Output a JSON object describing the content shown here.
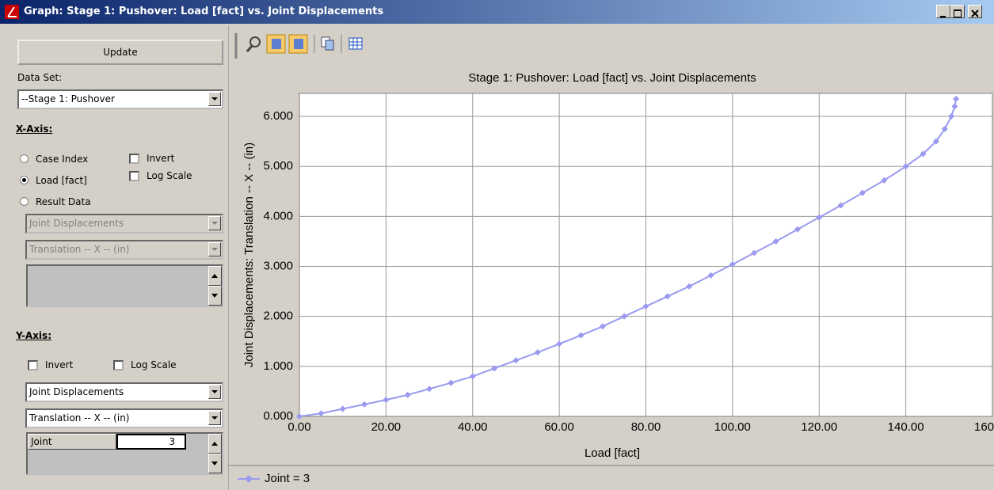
{
  "window": {
    "title": "Graph: Stage 1: Pushover: Load [fact] vs. Joint Displacements"
  },
  "panel": {
    "update": "Update",
    "data_set_label": "Data Set:",
    "data_set": "--Stage 1: Pushover",
    "x_axis": {
      "heading": "X-Axis:",
      "options": [
        "Case Index",
        "Load [fact]",
        "Result Data"
      ],
      "selected": 1,
      "invert": "Invert",
      "log_scale": "Log Scale",
      "result_type": "Joint Displacements",
      "component": "Translation -- X -- (in)"
    },
    "y_axis": {
      "heading": "Y-Axis:",
      "invert": "Invert",
      "log_scale": "Log Scale",
      "result_type": "Joint Displacements",
      "component": "Translation -- X -- (in)",
      "item_label": "Joint",
      "item_value": "3"
    }
  },
  "chart_data": {
    "type": "line",
    "title": "Stage 1: Pushover: Load [fact] vs. Joint Displacements",
    "x_label": "Load [fact]",
    "y_label": "Joint Displacements: Translation -- X -- (in)",
    "xlim": [
      0,
      160
    ],
    "ylim": [
      0,
      6.46
    ],
    "xticks": [
      {
        "value": 0,
        "label": "0.00"
      },
      {
        "value": 20,
        "label": "20.00"
      },
      {
        "value": 40,
        "label": "40.00"
      },
      {
        "value": 60,
        "label": "60.00"
      },
      {
        "value": 80,
        "label": "80.00"
      },
      {
        "value": 100,
        "label": "100.00"
      },
      {
        "value": 120,
        "label": "120.00"
      },
      {
        "value": 140,
        "label": "140.00"
      },
      {
        "value": 160,
        "label": "160.00"
      }
    ],
    "yticks": [
      {
        "value": 0,
        "label": "0.000"
      },
      {
        "value": 1,
        "label": "1.000"
      },
      {
        "value": 2,
        "label": "2.000"
      },
      {
        "value": 3,
        "label": "3.000"
      },
      {
        "value": 4,
        "label": "4.000"
      },
      {
        "value": 5,
        "label": "5.000"
      },
      {
        "value": 6,
        "label": "6.000"
      }
    ],
    "grid": true,
    "legend": "bottom-left",
    "series": [
      {
        "name": "Joint = 3",
        "color": "#9a9af0",
        "x": [
          0,
          5,
          10,
          15,
          20,
          25,
          30,
          35,
          40,
          45,
          50,
          55,
          60,
          65,
          70,
          75,
          80,
          85,
          90,
          95,
          100,
          105,
          110,
          115,
          120,
          125,
          130,
          135,
          140,
          144,
          147,
          149,
          150.5,
          151.3,
          151.6
        ],
        "values": [
          0,
          0.06,
          0.15,
          0.24,
          0.33,
          0.43,
          0.55,
          0.67,
          0.8,
          0.96,
          1.12,
          1.28,
          1.45,
          1.62,
          1.8,
          2.0,
          2.2,
          2.4,
          2.6,
          2.82,
          3.04,
          3.27,
          3.5,
          3.74,
          3.98,
          4.22,
          4.47,
          4.72,
          5.0,
          5.25,
          5.5,
          5.75,
          6.0,
          6.2,
          6.35
        ]
      }
    ]
  }
}
